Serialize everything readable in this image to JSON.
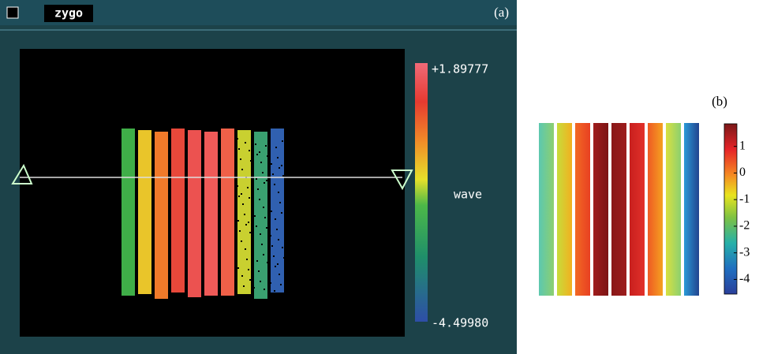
{
  "panel_a": {
    "logo": "zygo",
    "label": "(a)",
    "colorbar_max": "+1.89777",
    "colorbar_min": "-4.49980",
    "unit": "wave"
  },
  "panel_b": {
    "label": "(b)",
    "colorbar_lim": [
      -4.55,
      1.85
    ],
    "colorbar_ticks": [
      1,
      0,
      -1,
      -2,
      -3,
      -4
    ]
  }
}
